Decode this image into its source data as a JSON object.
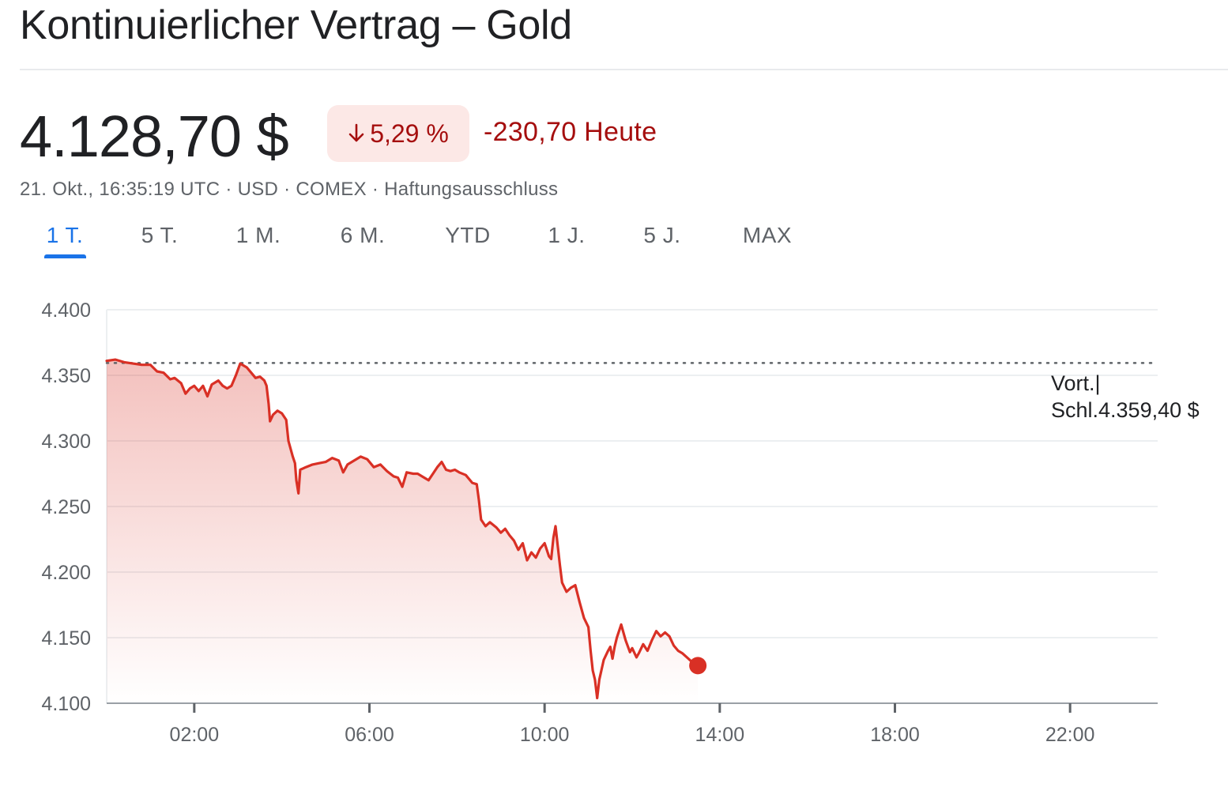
{
  "header": {
    "title": "Kontinuierlicher Vertrag – Gold"
  },
  "quote": {
    "price": "4.128,70 $",
    "change_percent": "5,29 %",
    "change_abs": "-230,70 Heute",
    "meta": "21. Okt., 16:35:19 UTC · USD · COMEX · Haftungsausschluss",
    "direction": "down",
    "negative_color": "#a50e0e"
  },
  "tabs": [
    {
      "label": "1 T.",
      "active": true
    },
    {
      "label": "5 T.",
      "active": false
    },
    {
      "label": "1 M.",
      "active": false
    },
    {
      "label": "6 M.",
      "active": false
    },
    {
      "label": "YTD",
      "active": false
    },
    {
      "label": "1 J.",
      "active": false
    },
    {
      "label": "5 J.",
      "active": false
    },
    {
      "label": "MAX",
      "active": false
    }
  ],
  "tooltip": {
    "line1": "Vort.|",
    "line2": "Schl.4.359,40 $"
  },
  "chart_data": {
    "type": "area",
    "title": "",
    "xlabel": "",
    "ylabel": "",
    "x_unit": "hours (time of day)",
    "xlim": [
      0,
      24
    ],
    "ylim": [
      4100,
      4400
    ],
    "y_ticks": [
      4100,
      4150,
      4200,
      4250,
      4300,
      4350,
      4400
    ],
    "y_tick_labels": [
      "4.100",
      "4.150",
      "4.200",
      "4.250",
      "4.300",
      "4.350",
      "4.400"
    ],
    "x_ticks": [
      2,
      6,
      10,
      14,
      18,
      22
    ],
    "x_tick_labels": [
      "02:00",
      "06:00",
      "10:00",
      "14:00",
      "18:00",
      "22:00"
    ],
    "grid": true,
    "reference_line": {
      "label": "Vort. Schl.",
      "value": 4359.4
    },
    "line_color": "#d93025",
    "series": [
      {
        "points": [
          [
            0.0,
            4361
          ],
          [
            0.2,
            4362
          ],
          [
            0.4,
            4360
          ],
          [
            0.6,
            4359
          ],
          [
            0.8,
            4358
          ],
          [
            1.0,
            4358
          ],
          [
            1.15,
            4353
          ],
          [
            1.3,
            4352
          ],
          [
            1.45,
            4347
          ],
          [
            1.55,
            4348
          ],
          [
            1.7,
            4344
          ],
          [
            1.8,
            4336
          ],
          [
            1.9,
            4340
          ],
          [
            2.0,
            4342
          ],
          [
            2.1,
            4338
          ],
          [
            2.2,
            4342
          ],
          [
            2.3,
            4334
          ],
          [
            2.4,
            4343
          ],
          [
            2.55,
            4346
          ],
          [
            2.65,
            4342
          ],
          [
            2.75,
            4340
          ],
          [
            2.85,
            4342
          ],
          [
            2.95,
            4350
          ],
          [
            3.05,
            4359
          ],
          [
            3.2,
            4356
          ],
          [
            3.3,
            4352
          ],
          [
            3.4,
            4348
          ],
          [
            3.5,
            4349
          ],
          [
            3.6,
            4346
          ],
          [
            3.65,
            4342
          ],
          [
            3.7,
            4328
          ],
          [
            3.73,
            4315
          ],
          [
            3.8,
            4320
          ],
          [
            3.9,
            4323
          ],
          [
            4.0,
            4321
          ],
          [
            4.1,
            4316
          ],
          [
            4.15,
            4300
          ],
          [
            4.25,
            4288
          ],
          [
            4.3,
            4283
          ],
          [
            4.33,
            4270
          ],
          [
            4.38,
            4260
          ],
          [
            4.42,
            4278
          ],
          [
            4.55,
            4280
          ],
          [
            4.7,
            4282
          ],
          [
            4.85,
            4283
          ],
          [
            5.0,
            4284
          ],
          [
            5.15,
            4287
          ],
          [
            5.3,
            4285
          ],
          [
            5.4,
            4276
          ],
          [
            5.5,
            4282
          ],
          [
            5.65,
            4285
          ],
          [
            5.8,
            4288
          ],
          [
            5.95,
            4286
          ],
          [
            6.1,
            4280
          ],
          [
            6.25,
            4282
          ],
          [
            6.4,
            4277
          ],
          [
            6.55,
            4273
          ],
          [
            6.65,
            4272
          ],
          [
            6.75,
            4265
          ],
          [
            6.85,
            4276
          ],
          [
            7.0,
            4275
          ],
          [
            7.1,
            4275
          ],
          [
            7.25,
            4272
          ],
          [
            7.35,
            4270
          ],
          [
            7.45,
            4275
          ],
          [
            7.55,
            4280
          ],
          [
            7.65,
            4284
          ],
          [
            7.75,
            4278
          ],
          [
            7.85,
            4277
          ],
          [
            7.95,
            4278
          ],
          [
            8.05,
            4276
          ],
          [
            8.2,
            4274
          ],
          [
            8.35,
            4268
          ],
          [
            8.45,
            4267
          ],
          [
            8.5,
            4255
          ],
          [
            8.55,
            4240
          ],
          [
            8.65,
            4235
          ],
          [
            8.75,
            4238
          ],
          [
            8.9,
            4234
          ],
          [
            9.0,
            4230
          ],
          [
            9.1,
            4233
          ],
          [
            9.2,
            4228
          ],
          [
            9.3,
            4224
          ],
          [
            9.4,
            4217
          ],
          [
            9.5,
            4222
          ],
          [
            9.6,
            4209
          ],
          [
            9.7,
            4215
          ],
          [
            9.8,
            4211
          ],
          [
            9.9,
            4218
          ],
          [
            10.0,
            4222
          ],
          [
            10.1,
            4212
          ],
          [
            10.15,
            4210
          ],
          [
            10.2,
            4226
          ],
          [
            10.25,
            4235
          ],
          [
            10.3,
            4220
          ],
          [
            10.35,
            4205
          ],
          [
            10.4,
            4192
          ],
          [
            10.5,
            4185
          ],
          [
            10.6,
            4188
          ],
          [
            10.7,
            4190
          ],
          [
            10.8,
            4177
          ],
          [
            10.9,
            4165
          ],
          [
            11.0,
            4158
          ],
          [
            11.05,
            4140
          ],
          [
            11.1,
            4125
          ],
          [
            11.15,
            4118
          ],
          [
            11.2,
            4104
          ],
          [
            11.25,
            4118
          ],
          [
            11.35,
            4133
          ],
          [
            11.45,
            4140
          ],
          [
            11.5,
            4143
          ],
          [
            11.55,
            4134
          ],
          [
            11.6,
            4143
          ],
          [
            11.65,
            4150
          ],
          [
            11.75,
            4160
          ],
          [
            11.85,
            4148
          ],
          [
            11.95,
            4139
          ],
          [
            12.0,
            4142
          ],
          [
            12.1,
            4135
          ],
          [
            12.15,
            4138
          ],
          [
            12.25,
            4145
          ],
          [
            12.35,
            4140
          ],
          [
            12.45,
            4148
          ],
          [
            12.55,
            4155
          ],
          [
            12.65,
            4151
          ],
          [
            12.75,
            4154
          ],
          [
            12.85,
            4151
          ],
          [
            12.95,
            4144
          ],
          [
            13.05,
            4140
          ],
          [
            13.15,
            4138
          ],
          [
            13.25,
            4135
          ],
          [
            13.35,
            4132
          ],
          [
            13.5,
            4128.7
          ]
        ]
      }
    ]
  }
}
